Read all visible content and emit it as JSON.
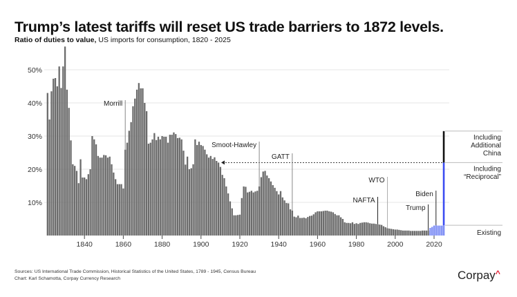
{
  "title": "Trump’s latest tariffs will reset US trade barriers to 1872 levels.",
  "subtitle_bold": "Ratio of duties to value,",
  "subtitle_rest": " US imports for consumption, 1820 - 2025",
  "sources": "Sources: US International Trade Commission, Historical Statistics of the United States, 1789 - 1945, Census Bureau",
  "credit": "Chart: Karl Schamotta, Corpay Currency Research",
  "logo": "Corpay",
  "colors": {
    "bar": "#6b6b6b",
    "recent_bar": "#7f8ff5",
    "reciprocal": "#3b4cf2",
    "china": "#111111",
    "logo_caret": "#e0182d",
    "grid": "#e6e6e6"
  },
  "chart_data": {
    "type": "bar",
    "title": "Trump’s latest tariffs will reset US trade barriers to 1872 levels.",
    "ylabel": "Ratio of duties to value",
    "ylim": [
      0,
      60
    ],
    "yticks": [
      "10%",
      "20%",
      "30%",
      "40%",
      "50%"
    ],
    "ytick_values": [
      10,
      20,
      30,
      40,
      50
    ],
    "xticks": [
      "1840",
      "1860",
      "1880",
      "1900",
      "1920",
      "1940",
      "1960",
      "1980",
      "2000",
      "2020"
    ],
    "xtick_values": [
      1840,
      1860,
      1880,
      1900,
      1920,
      1940,
      1960,
      1980,
      2000,
      2020
    ],
    "grid": true,
    "start_year": 1821,
    "values": [
      43,
      35,
      43.5,
      47.3,
      47.5,
      45,
      51,
      44.5,
      51,
      57,
      44,
      38.5,
      28.7,
      21.5,
      21,
      19.5,
      15.8,
      23,
      17.5,
      17.5,
      17,
      18.5,
      20,
      30,
      29,
      27.5,
      24,
      23.5,
      23.5,
      24.3,
      24.2,
      23.5,
      23.8,
      21.5,
      19,
      17,
      15.5,
      15.5,
      15.5,
      14.2,
      25.9,
      28,
      31.6,
      34.2,
      39,
      41.3,
      44,
      46,
      44.4,
      44.4,
      40,
      37.5,
      27.7,
      28,
      29,
      30.9,
      28.8,
      29.8,
      29,
      30,
      29.8,
      29.8,
      28,
      30.4,
      30.4,
      31.1,
      30.6,
      29.4,
      29.5,
      29,
      25.6,
      21.4,
      23.8,
      20,
      20.3,
      21.5,
      29,
      27.3,
      28.3,
      27.3,
      27,
      25.9,
      24.5,
      23.5,
      24,
      23.1,
      23.6,
      22.5,
      22,
      20.7,
      18.3,
      17.3,
      14.8,
      12.7,
      10.3,
      8.2,
      6.1,
      6.1,
      6.2,
      6.3,
      11.3,
      14.8,
      14.7,
      13,
      13.2,
      13.5,
      13,
      13.3,
      13.5,
      14.8,
      17.6,
      19.3,
      19.5,
      18.1,
      17.3,
      16.3,
      15.2,
      14.4,
      13.4,
      12.4,
      13.4,
      11.5,
      10.6,
      9.8,
      9.7,
      7.9,
      7.5,
      5.7,
      5.5,
      6,
      5.3,
      5.3,
      5.4,
      5.2,
      5.6,
      5.9,
      6,
      6.4,
      7,
      7.3,
      7.3,
      7.3,
      7.4,
      7.5,
      7.5,
      7.3,
      7.2,
      7,
      6.5,
      6.1,
      6.1,
      5.5,
      5,
      4,
      3.8,
      3.8,
      3.7,
      4,
      3.5,
      3.7,
      3.5,
      3.8,
      3.9,
      4,
      4,
      3.9,
      3.7,
      3.6,
      3.6,
      3.5,
      3.4,
      3.3,
      3.2,
      2.8,
      2.5,
      2.2,
      2.1,
      2,
      1.9,
      1.8,
      1.8,
      1.7,
      1.6,
      1.5,
      1.5,
      1.5,
      1.5,
      1.4,
      1.4,
      1.4,
      1.4,
      1.4,
      1.4,
      1.5,
      1.5,
      1.5,
      1.5,
      2.3,
      2.6,
      3.0,
      3.1,
      3.0,
      3.0,
      3.0
    ],
    "recent_from_year": 2018,
    "projection_2025": {
      "year": 2025,
      "existing": 3.1,
      "including_reciprocal": 22,
      "including_additional_china": 31.5,
      "labels": {
        "existing": "Existing",
        "reciprocal": [
          "Including",
          "“Reciprocal”"
        ],
        "china": [
          "Including",
          "Additional",
          "China"
        ]
      }
    },
    "annotations": [
      {
        "label": "Morrill",
        "year": 1861
      },
      {
        "label": "Smoot-Hawley",
        "year": 1930
      },
      {
        "label": "GATT",
        "year": 1947
      },
      {
        "label": "NAFTA",
        "year": 1991
      },
      {
        "label": "WTO",
        "year": 1996
      },
      {
        "label": "Trump",
        "year": 2017
      },
      {
        "label": "Biden",
        "year": 2021
      }
    ]
  }
}
